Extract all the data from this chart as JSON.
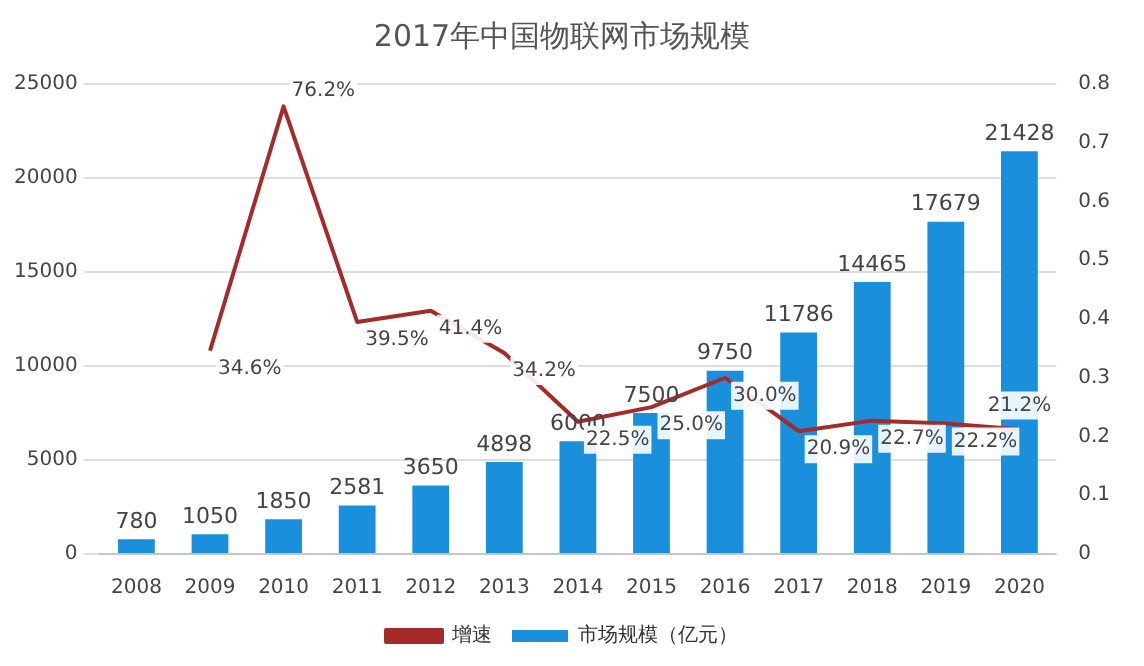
{
  "chart_data": {
    "type": "bar",
    "title": "2017年中国物联网市场规模",
    "categories": [
      "2008",
      "2009",
      "2010",
      "2011",
      "2012",
      "2013",
      "2014",
      "2015",
      "2016",
      "2017",
      "2018",
      "2019",
      "2020"
    ],
    "series": [
      {
        "name": "市场规模（亿元）",
        "color": "#1a8fdc",
        "values": [
          780,
          1050,
          1850,
          2581,
          3650,
          4898,
          6000,
          7500,
          9750,
          11786,
          14465,
          17679,
          21428
        ],
        "value_labels": [
          "780",
          "1050",
          "1850",
          "2581",
          "3650",
          "4898",
          "6000",
          "7500",
          "9750",
          "11786",
          "14465",
          "17679",
          "21428"
        ]
      },
      {
        "name": "增速",
        "type": "line",
        "axis": "y2",
        "color": "#a52a2a",
        "values": [
          null,
          0.346,
          0.762,
          0.395,
          0.414,
          0.342,
          0.225,
          0.25,
          0.3,
          0.209,
          0.227,
          0.222,
          0.212
        ],
        "value_labels": [
          null,
          "34.6%",
          "76.2%",
          "39.5%",
          "41.4%",
          "34.2%",
          "22.5%",
          "25.0%",
          "30.0%",
          "20.9%",
          "22.7%",
          "22.2%",
          "21.2%"
        ]
      }
    ],
    "ylim": [
      0,
      25000
    ],
    "yticks": [
      0,
      5000,
      10000,
      15000,
      20000,
      25000
    ],
    "y2lim": [
      0,
      0.8
    ],
    "y2ticks": [
      0,
      0.1,
      0.2,
      0.3,
      0.4,
      0.5,
      0.6,
      0.7,
      0.8
    ],
    "grid": "y",
    "legend": "bottom",
    "marker": "none"
  }
}
